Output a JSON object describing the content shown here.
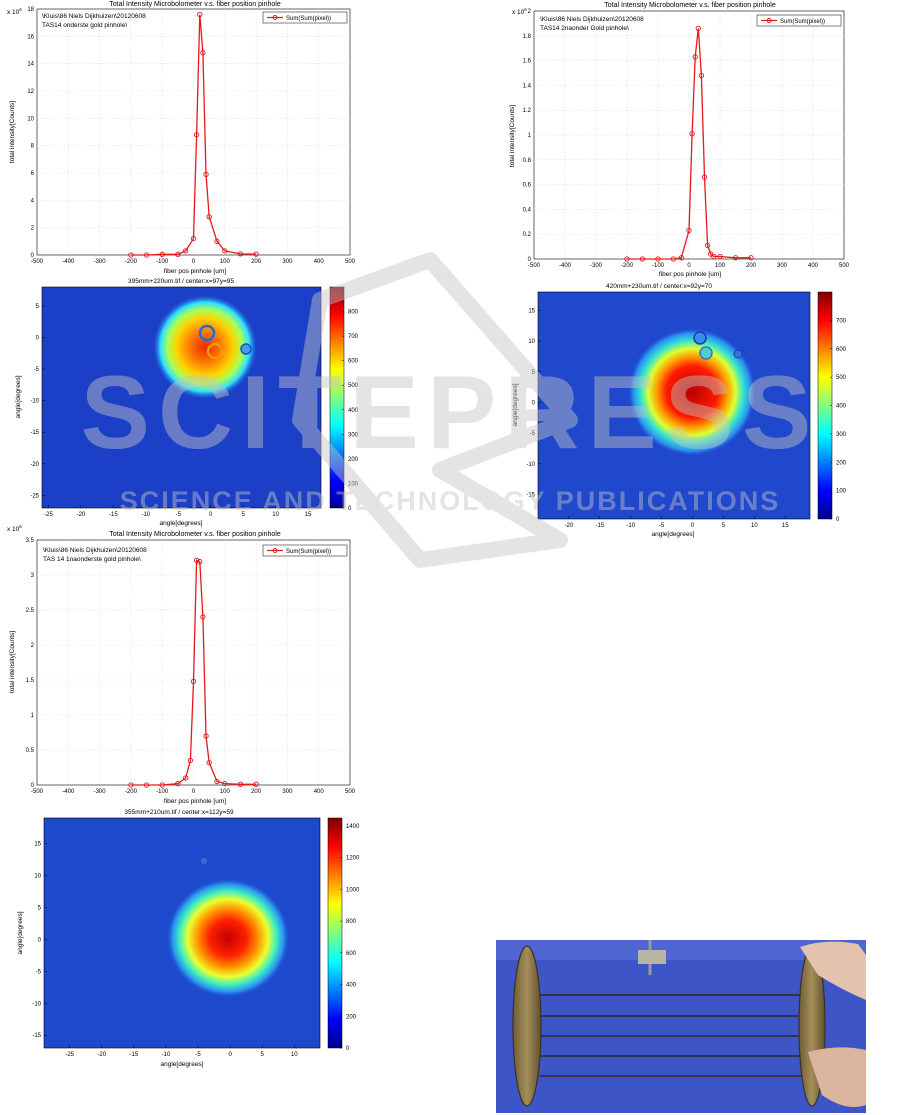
{
  "line_plots": [
    {
      "id": "p1",
      "title": "Total Intensity Microbolometer v.s. fiber position pinhole",
      "info_lines": [
        "\\Kluis\\86 Niels Dijkhuizen\\20120608",
        "TAS14 onderste gold pinhole\\"
      ],
      "legend": "Sum(Sum(pixel))",
      "xlabel": "fiber pos pinhole [um]",
      "ylabel": "total intensity[Counts]",
      "exponent": "x 10",
      "exponent_power": "6",
      "xticks": [
        "-500",
        "-400",
        "-300",
        "-200",
        "-100",
        "0",
        "100",
        "200",
        "300",
        "400",
        "500"
      ],
      "yticks": [
        "0",
        "2",
        "4",
        "6",
        "8",
        "10",
        "12",
        "14",
        "16",
        "18"
      ]
    },
    {
      "id": "p2",
      "title": "Total Intensity Microbolometer v.s. fiber position pinhole",
      "info_lines": [
        "\\Kluis\\86 Niels Dijkhuizen\\20120608",
        "TAS14 2naonder Gold pinhole\\"
      ],
      "legend": "Sum(Sum(pixel))",
      "xlabel": "fiber pos pinhole [um]",
      "ylabel": "total intensity[Counts]",
      "exponent": "x 10",
      "exponent_power": "6",
      "xticks": [
        "-500",
        "-400",
        "-300",
        "-200",
        "-100",
        "0",
        "100",
        "200",
        "300",
        "400",
        "500"
      ],
      "yticks": [
        "0",
        "0.2",
        "0.4",
        "0.6",
        "0.8",
        "1",
        "1.2",
        "1.4",
        "1.6",
        "1.8",
        "2"
      ]
    },
    {
      "id": "p3",
      "title": "Total Intensity Microbolometer v.s. fiber position pinhole",
      "info_lines": [
        "\\Kluis\\86 Niels Dijkhuizen\\20120608",
        "TAS 14 1naonderste gold pinhole\\"
      ],
      "legend": "Sum(Sum(pixel))",
      "xlabel": "fiber pos pinhole [um]",
      "ylabel": "total intensity[Counts]",
      "exponent": "x 10",
      "exponent_power": "6",
      "xticks": [
        "-500",
        "-400",
        "-300",
        "-200",
        "-100",
        "0",
        "100",
        "200",
        "300",
        "400",
        "500"
      ],
      "yticks": [
        "0",
        "0.5",
        "1",
        "1.5",
        "2",
        "2.5",
        "3",
        "3.5"
      ]
    }
  ],
  "heatmaps": [
    {
      "id": "h1",
      "title": "395mm+220um.tif  / center:x=97y=95",
      "xlabel": "angle[degrees]",
      "ylabel": "angle[degrees]",
      "xticks": [
        "-25",
        "-20",
        "-15",
        "-10",
        "-5",
        "0",
        "5",
        "10",
        "15"
      ],
      "yticks": [
        "5",
        "0",
        "-5",
        "-10",
        "-15",
        "-20",
        "-25"
      ],
      "cticks": [
        "0",
        "100",
        "200",
        "300",
        "400",
        "500",
        "600",
        "700",
        "800"
      ]
    },
    {
      "id": "h2",
      "title": "420mm+230um.tif  / center:x=92y=70",
      "xlabel": "angle[degrees]",
      "ylabel": "angle[degrees]",
      "xticks": [
        "-20",
        "-15",
        "-10",
        "-5",
        "0",
        "5",
        "10",
        "15"
      ],
      "yticks": [
        "15",
        "10",
        "5",
        "0",
        "-5",
        "-10",
        "-15"
      ],
      "cticks": [
        "0",
        "100",
        "200",
        "300",
        "400",
        "500",
        "600",
        "700"
      ]
    },
    {
      "id": "h3",
      "title": "355mm+210um.tif  / center:x=112y=59",
      "xlabel": "angle[degrees]",
      "ylabel": "angle[degrees]",
      "xticks": [
        "-25",
        "-20",
        "-15",
        "-10",
        "-5",
        "0",
        "5",
        "10"
      ],
      "yticks": [
        "15",
        "10",
        "5",
        "0",
        "-5",
        "-10",
        "-15"
      ],
      "cticks": [
        "0",
        "200",
        "400",
        "600",
        "800",
        "1000",
        "1200",
        "1400"
      ]
    }
  ],
  "watermark": {
    "big": "SCITEPRESS",
    "small": "SCIENCE AND TECHNOLOGY PUBLICATIONS"
  },
  "photo": {
    "label": "apparatus-photo"
  },
  "colors": {
    "series": "#e31a1c",
    "grid": "#d8d8d8",
    "watermark": "#c4c4c4"
  },
  "chart_data": [
    {
      "type": "line",
      "title": "Total Intensity Microbolometer v.s. fiber position pinhole",
      "xlabel": "fiber pos pinhole [um]",
      "ylabel": "total intensity[Counts]",
      "y_multiplier": "x 10^6",
      "xlim": [
        -500,
        500
      ],
      "ylim": [
        0,
        18
      ],
      "series": [
        {
          "name": "Sum(Sum(pixel))",
          "x": [
            -200,
            -150,
            -100,
            -50,
            -25,
            0,
            10,
            20,
            30,
            40,
            50,
            75,
            100,
            150,
            200
          ],
          "y": [
            0,
            0,
            0.05,
            0.05,
            0.3,
            1.2,
            8.8,
            17.6,
            14.8,
            5.9,
            2.8,
            1.0,
            0.3,
            0.08,
            0.06
          ]
        }
      ]
    },
    {
      "type": "line",
      "title": "Total Intensity Microbolometer v.s. fiber position pinhole",
      "xlabel": "fiber pos pinhole [um]",
      "ylabel": "total intensity[Counts]",
      "y_multiplier": "x 10^6",
      "xlim": [
        -500,
        500
      ],
      "ylim": [
        0,
        2
      ],
      "series": [
        {
          "name": "Sum(Sum(pixel))",
          "x": [
            -200,
            -150,
            -100,
            -50,
            -25,
            0,
            10,
            20,
            30,
            40,
            50,
            60,
            70,
            80,
            100,
            150,
            200
          ],
          "y": [
            0,
            0,
            0,
            0,
            0.01,
            0.23,
            1.01,
            1.63,
            1.86,
            1.48,
            0.66,
            0.11,
            0.04,
            0.02,
            0.02,
            0.01,
            0.01
          ]
        }
      ]
    },
    {
      "type": "line",
      "title": "Total Intensity Microbolometer v.s. fiber position pinhole",
      "xlabel": "fiber pos pinhole [um]",
      "ylabel": "total intensity[Counts]",
      "y_multiplier": "x 10^6",
      "xlim": [
        -500,
        500
      ],
      "ylim": [
        0,
        3.5
      ],
      "series": [
        {
          "name": "Sum(Sum(pixel))",
          "x": [
            -200,
            -150,
            -100,
            -50,
            -25,
            -10,
            0,
            10,
            20,
            30,
            40,
            50,
            75,
            100,
            150,
            200
          ],
          "y": [
            0,
            0,
            0,
            0.02,
            0.1,
            0.35,
            1.48,
            3.21,
            3.19,
            2.4,
            0.7,
            0.32,
            0.05,
            0.02,
            0.01,
            0.01
          ]
        }
      ]
    },
    {
      "type": "heatmap",
      "title": "395mm+220um.tif  / center:x=97y=95",
      "xlabel": "angle[degrees]",
      "ylabel": "angle[degrees]",
      "xlim": [
        -26,
        17
      ],
      "ylim": [
        -27,
        8
      ],
      "clim": [
        0,
        900
      ]
    },
    {
      "type": "heatmap",
      "title": "420mm+230um.tif  / center:x=92y=70",
      "xlabel": "angle[degrees]",
      "ylabel": "angle[degrees]",
      "xlim": [
        -25,
        19
      ],
      "ylim": [
        -19,
        18
      ],
      "clim": [
        0,
        800
      ]
    },
    {
      "type": "heatmap",
      "title": "355mm+210um.tif  / center:x=112y=59",
      "xlabel": "angle[degrees]",
      "ylabel": "angle[degrees]",
      "xlim": [
        -29,
        14
      ],
      "ylim": [
        -17,
        19
      ],
      "clim": [
        0,
        1450
      ]
    }
  ]
}
